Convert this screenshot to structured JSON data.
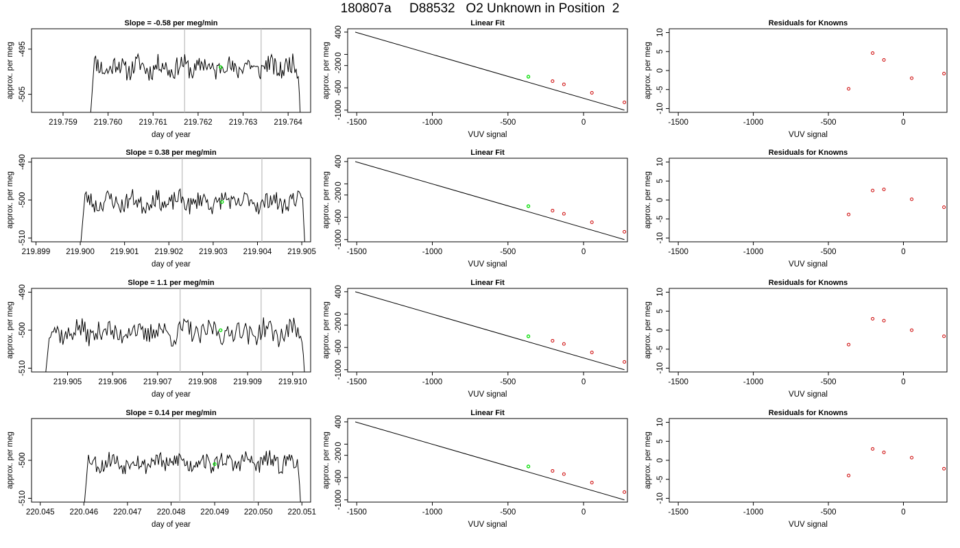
{
  "page_title": "180807a     D88532   O2 Unknown in Position  2",
  "colors": {
    "trace": "#000000",
    "marker_unknown": "#00dd00",
    "marker_known": "#cc0000",
    "vline": "#bbbbbb"
  },
  "chart_data": [
    {
      "type": "line",
      "title": "Slope =  -0.58  per meg/min",
      "xlabel": "day of year",
      "ylabel": "approx. per meg",
      "xlim": [
        219.7583,
        219.7645
      ],
      "ylim": [
        -509,
        -490.5
      ],
      "xticks": [
        "219.759",
        "219.760",
        "219.761",
        "219.762",
        "219.763",
        "219.764"
      ],
      "yticks": [
        "-495",
        "-505"
      ],
      "ytick_values": [
        -495,
        -505
      ],
      "trace_x_range": [
        219.7596,
        219.7643
      ],
      "level": -499,
      "noise": 2.2,
      "seed": 11,
      "vlines": [
        219.7617,
        219.7634
      ],
      "highlight": {
        "x": 219.7625,
        "y": -499
      }
    },
    {
      "type": "line",
      "title": "Slope =  0.38  per meg/min",
      "xlabel": "day of year",
      "ylabel": "approx. per meg",
      "xlim": [
        219.8989,
        219.9052
      ],
      "ylim": [
        -511,
        -489
      ],
      "xticks": [
        "219.899",
        "219.900",
        "219.901",
        "219.902",
        "219.903",
        "219.904",
        "219.905"
      ],
      "yticks": [
        "-490",
        "-500",
        "-510"
      ],
      "ytick_values": [
        -490,
        -500,
        -510
      ],
      "trace_x_range": [
        219.9,
        219.9051
      ],
      "level": -500.5,
      "noise": 2.4,
      "seed": 23,
      "vlines": [
        219.9023,
        219.9041
      ],
      "highlight": {
        "x": 219.9032,
        "y": -500.5
      }
    },
    {
      "type": "line",
      "title": "Slope =  1.1  per meg/min",
      "xlabel": "day of year",
      "ylabel": "approx. per meg",
      "xlim": [
        219.9042,
        219.9104
      ],
      "ylim": [
        -511,
        -489
      ],
      "xticks": [
        "219.905",
        "219.906",
        "219.907",
        "219.908",
        "219.909",
        "219.910"
      ],
      "yticks": [
        "-490",
        "-500",
        "-510"
      ],
      "ytick_values": [
        -490,
        -500,
        -510
      ],
      "trace_x_range": [
        219.9045,
        219.9103
      ],
      "level": -500.5,
      "noise": 2.8,
      "seed": 37,
      "vlines": [
        219.9075,
        219.9093
      ],
      "highlight": {
        "x": 219.9084,
        "y": -500
      }
    },
    {
      "type": "line",
      "title": "Slope =  0.14  per meg/min",
      "xlabel": "day of year",
      "ylabel": "approx. per meg",
      "xlim": [
        220.0448,
        220.0512
      ],
      "ylim": [
        -511,
        -489
      ],
      "xticks": [
        "220.045",
        "220.046",
        "220.047",
        "220.048",
        "220.049",
        "220.050",
        "220.051"
      ],
      "yticks": [
        "-500",
        "-510"
      ],
      "ytick_values": [
        -500,
        -510
      ],
      "trace_x_range": [
        220.046,
        220.051
      ],
      "level": -500.5,
      "noise": 2.3,
      "seed": 53,
      "vlines": [
        220.0482,
        220.0499
      ],
      "highlight": {
        "x": 220.049,
        "y": -501
      }
    },
    {
      "type": "scatter",
      "title": "Linear Fit",
      "xlabel": "VUV signal",
      "ylabel": "approx. per meg",
      "xlim": [
        -1560,
        290
      ],
      "ylim": [
        -1040,
        460
      ],
      "xticks": [
        "-1500",
        "-1000",
        "-500",
        "0"
      ],
      "xtick_values": [
        -1500,
        -1000,
        -500,
        0
      ],
      "yticks": [
        "-1000",
        "-600",
        "-200",
        "0",
        "400"
      ],
      "ytick_values": [
        -1000,
        -600,
        -200,
        0,
        400
      ],
      "fit_line": {
        "x": [
          -1510,
          270
        ],
        "y": [
          400,
          -1000
        ]
      },
      "knowns": {
        "x": [
          -205,
          -130,
          55,
          270
        ],
        "y": [
          -480,
          -537,
          -690,
          -860
        ]
      },
      "unknown": {
        "x": -365,
        "y": -400
      }
    },
    {
      "type": "scatter",
      "title": "Linear Fit",
      "xlabel": "VUV signal",
      "ylabel": "approx. per meg",
      "xlim": [
        -1560,
        290
      ],
      "ylim": [
        -1040,
        460
      ],
      "xticks": [
        "-1500",
        "-1000",
        "-500",
        "0"
      ],
      "xtick_values": [
        -1500,
        -1000,
        -500,
        0
      ],
      "yticks": [
        "-1000",
        "-600",
        "-200",
        "0",
        "400"
      ],
      "ytick_values": [
        -1000,
        -600,
        -200,
        0,
        400
      ],
      "fit_line": {
        "x": [
          -1510,
          270
        ],
        "y": [
          400,
          -1000
        ]
      },
      "knowns": {
        "x": [
          -205,
          -130,
          55,
          270
        ],
        "y": [
          -480,
          -537,
          -690,
          -860
        ]
      },
      "unknown": {
        "x": -365,
        "y": -400
      }
    },
    {
      "type": "scatter",
      "title": "Linear Fit",
      "xlabel": "VUV signal",
      "ylabel": "approx. per meg",
      "xlim": [
        -1560,
        290
      ],
      "ylim": [
        -1040,
        460
      ],
      "xticks": [
        "-1500",
        "-1000",
        "-500",
        "0"
      ],
      "xtick_values": [
        -1500,
        -1000,
        -500,
        0
      ],
      "yticks": [
        "-1000",
        "-600",
        "-200",
        "0",
        "400"
      ],
      "ytick_values": [
        -1000,
        -600,
        -200,
        0,
        400
      ],
      "fit_line": {
        "x": [
          -1510,
          270
        ],
        "y": [
          400,
          -1000
        ]
      },
      "knowns": {
        "x": [
          -205,
          -130,
          55,
          270
        ],
        "y": [
          -480,
          -537,
          -690,
          -860
        ]
      },
      "unknown": {
        "x": -365,
        "y": -400
      }
    },
    {
      "type": "scatter",
      "title": "Linear Fit",
      "xlabel": "VUV signal",
      "ylabel": "approx. per meg",
      "xlim": [
        -1560,
        290
      ],
      "ylim": [
        -1040,
        460
      ],
      "xticks": [
        "-1500",
        "-1000",
        "-500",
        "0"
      ],
      "xtick_values": [
        -1500,
        -1000,
        -500,
        0
      ],
      "yticks": [
        "-1000",
        "-600",
        "-200",
        "0",
        "400"
      ],
      "ytick_values": [
        -1000,
        -600,
        -200,
        0,
        400
      ],
      "fit_line": {
        "x": [
          -1510,
          270
        ],
        "y": [
          400,
          -1000
        ]
      },
      "knowns": {
        "x": [
          -205,
          -130,
          55,
          270
        ],
        "y": [
          -480,
          -537,
          -690,
          -860
        ]
      },
      "unknown": {
        "x": -365,
        "y": -400
      }
    },
    {
      "type": "scatter",
      "title": "Residuals for Knowns",
      "xlabel": "VUV signal",
      "ylabel": "approx. per meg",
      "xlim": [
        -1560,
        290
      ],
      "ylim": [
        -11,
        11
      ],
      "xticks": [
        "-1500",
        "-1000",
        "-500",
        "0"
      ],
      "xtick_values": [
        -1500,
        -1000,
        -500,
        0
      ],
      "yticks": [
        "-10",
        "-5",
        "0",
        "5",
        "10"
      ],
      "ytick_values": [
        -10,
        -5,
        0,
        5,
        10
      ],
      "points": {
        "x": [
          -365,
          -205,
          -130,
          55,
          270
        ],
        "y": [
          -4.8,
          4.6,
          2.8,
          -2.0,
          -0.8
        ]
      }
    },
    {
      "type": "scatter",
      "title": "Residuals for Knowns",
      "xlabel": "VUV signal",
      "ylabel": "approx. per meg",
      "xlim": [
        -1560,
        290
      ],
      "ylim": [
        -11,
        11
      ],
      "xticks": [
        "-1500",
        "-1000",
        "-500",
        "0"
      ],
      "xtick_values": [
        -1500,
        -1000,
        -500,
        0
      ],
      "yticks": [
        "-10",
        "-5",
        "0",
        "5",
        "10"
      ],
      "ytick_values": [
        -10,
        -5,
        0,
        5,
        10
      ],
      "points": {
        "x": [
          -365,
          -205,
          -130,
          55,
          270
        ],
        "y": [
          -3.8,
          2.5,
          2.8,
          0.2,
          -1.9
        ]
      }
    },
    {
      "type": "scatter",
      "title": "Residuals for Knowns",
      "xlabel": "VUV signal",
      "ylabel": "approx. per meg",
      "xlim": [
        -1560,
        290
      ],
      "ylim": [
        -11,
        11
      ],
      "xticks": [
        "-1500",
        "-1000",
        "-500",
        "0"
      ],
      "xtick_values": [
        -1500,
        -1000,
        -500,
        0
      ],
      "yticks": [
        "-10",
        "-5",
        "0",
        "5",
        "10"
      ],
      "ytick_values": [
        -10,
        -5,
        0,
        5,
        10
      ],
      "points": {
        "x": [
          -365,
          -205,
          -130,
          55,
          270
        ],
        "y": [
          -3.8,
          3.0,
          2.5,
          0.0,
          -1.6
        ]
      }
    },
    {
      "type": "scatter",
      "title": "Residuals for Knowns",
      "xlabel": "VUV signal",
      "ylabel": "approx. per meg",
      "xlim": [
        -1560,
        290
      ],
      "ylim": [
        -11,
        11
      ],
      "xticks": [
        "-1500",
        "-1000",
        "-500",
        "0"
      ],
      "xtick_values": [
        -1500,
        -1000,
        -500,
        0
      ],
      "yticks": [
        "-10",
        "-5",
        "0",
        "5",
        "10"
      ],
      "ytick_values": [
        -10,
        -5,
        0,
        5,
        10
      ],
      "points": {
        "x": [
          -365,
          -205,
          -130,
          55,
          270
        ],
        "y": [
          -4.0,
          3.0,
          2.1,
          0.7,
          -2.2
        ]
      }
    }
  ]
}
